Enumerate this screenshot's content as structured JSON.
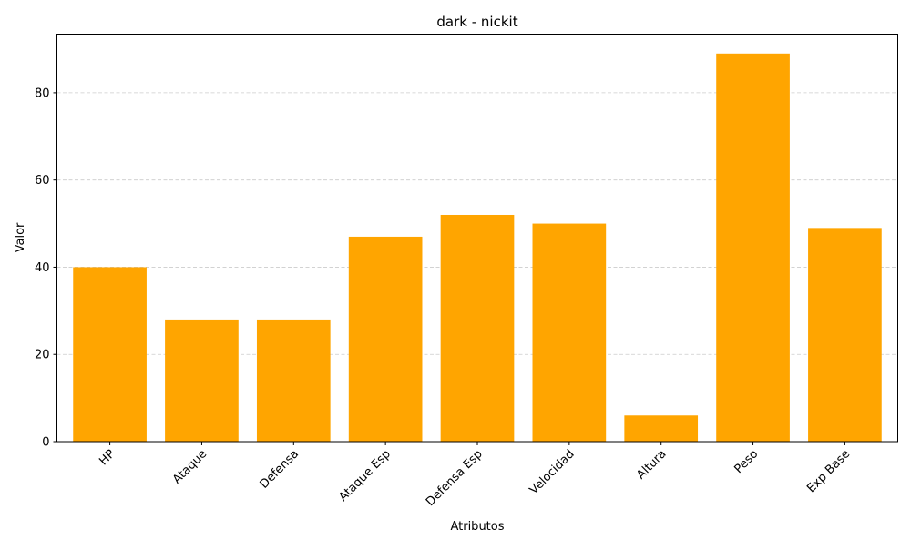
{
  "chart_data": {
    "type": "bar",
    "title": "dark - nickit",
    "xlabel": "Atributos",
    "ylabel": "Valor",
    "categories": [
      "HP",
      "Ataque",
      "Defensa",
      "Ataque Esp",
      "Defensa Esp",
      "Velocidad",
      "Altura",
      "Peso",
      "Exp Base"
    ],
    "values": [
      40,
      28,
      28,
      47,
      52,
      50,
      6,
      89,
      49
    ],
    "ylim": [
      0,
      93.45
    ],
    "yticks": [
      0,
      20,
      40,
      60,
      80
    ],
    "grid": "y-dashed",
    "bar_color": "#ffa500",
    "legend": "none"
  }
}
